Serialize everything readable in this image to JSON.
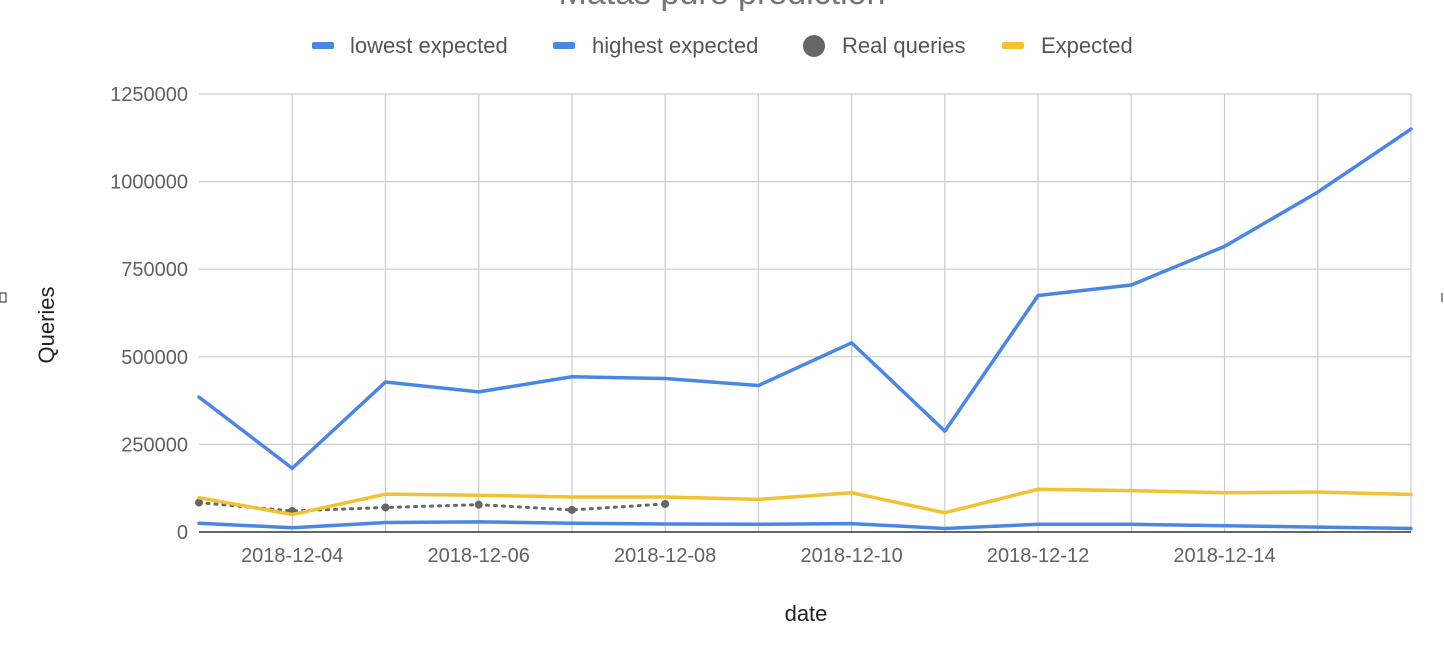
{
  "chart_data": {
    "type": "line",
    "title": "Matas pure prediction",
    "xlabel": "date",
    "ylabel": "Queries",
    "ylim": [
      0,
      1250000
    ],
    "y_ticks": [
      "0",
      "250000",
      "500000",
      "750000",
      "1000000",
      "1250000"
    ],
    "y_tick_values": [
      0,
      250000,
      500000,
      750000,
      1000000,
      1250000
    ],
    "x_tick_labels": [
      "2018-12-04",
      "2018-12-06",
      "2018-12-08",
      "2018-12-10",
      "2018-12-12",
      "2018-12-14"
    ],
    "x_tick_dates": [
      "2018-12-04",
      "2018-12-06",
      "2018-12-08",
      "2018-12-10",
      "2018-12-12",
      "2018-12-14"
    ],
    "xlim": [
      "2018-12-03",
      "2018-12-16"
    ],
    "grid": true,
    "legend_position": "top",
    "x": [
      "2018-12-03",
      "2018-12-04",
      "2018-12-05",
      "2018-12-06",
      "2018-12-07",
      "2018-12-08",
      "2018-12-09",
      "2018-12-10",
      "2018-12-11",
      "2018-12-12",
      "2018-12-13",
      "2018-12-14",
      "2018-12-15",
      "2018-12-16"
    ],
    "series": [
      {
        "name": "lowest expected",
        "style": "line",
        "color": "#4a86e8",
        "values": [
          25000,
          12000,
          27000,
          29000,
          25000,
          23000,
          22000,
          24000,
          10000,
          22000,
          22000,
          18000,
          14000,
          10000
        ]
      },
      {
        "name": "highest expected",
        "style": "line",
        "color": "#4a86e8",
        "values": [
          385000,
          182000,
          428000,
          400000,
          443000,
          438000,
          418000,
          540000,
          288000,
          675000,
          705000,
          815000,
          970000,
          1150000
        ]
      },
      {
        "name": "Real queries",
        "style": "dotted-points",
        "color": "#666666",
        "values": [
          84000,
          60000,
          70000,
          78000,
          63000,
          80000,
          null,
          null,
          null,
          null,
          null,
          null,
          null,
          null
        ]
      },
      {
        "name": "Expected",
        "style": "line",
        "color": "#f1c232",
        "values": [
          98000,
          50000,
          108000,
          105000,
          100000,
          100000,
          93000,
          112000,
          55000,
          122000,
          118000,
          112000,
          114000,
          107000
        ]
      }
    ]
  }
}
